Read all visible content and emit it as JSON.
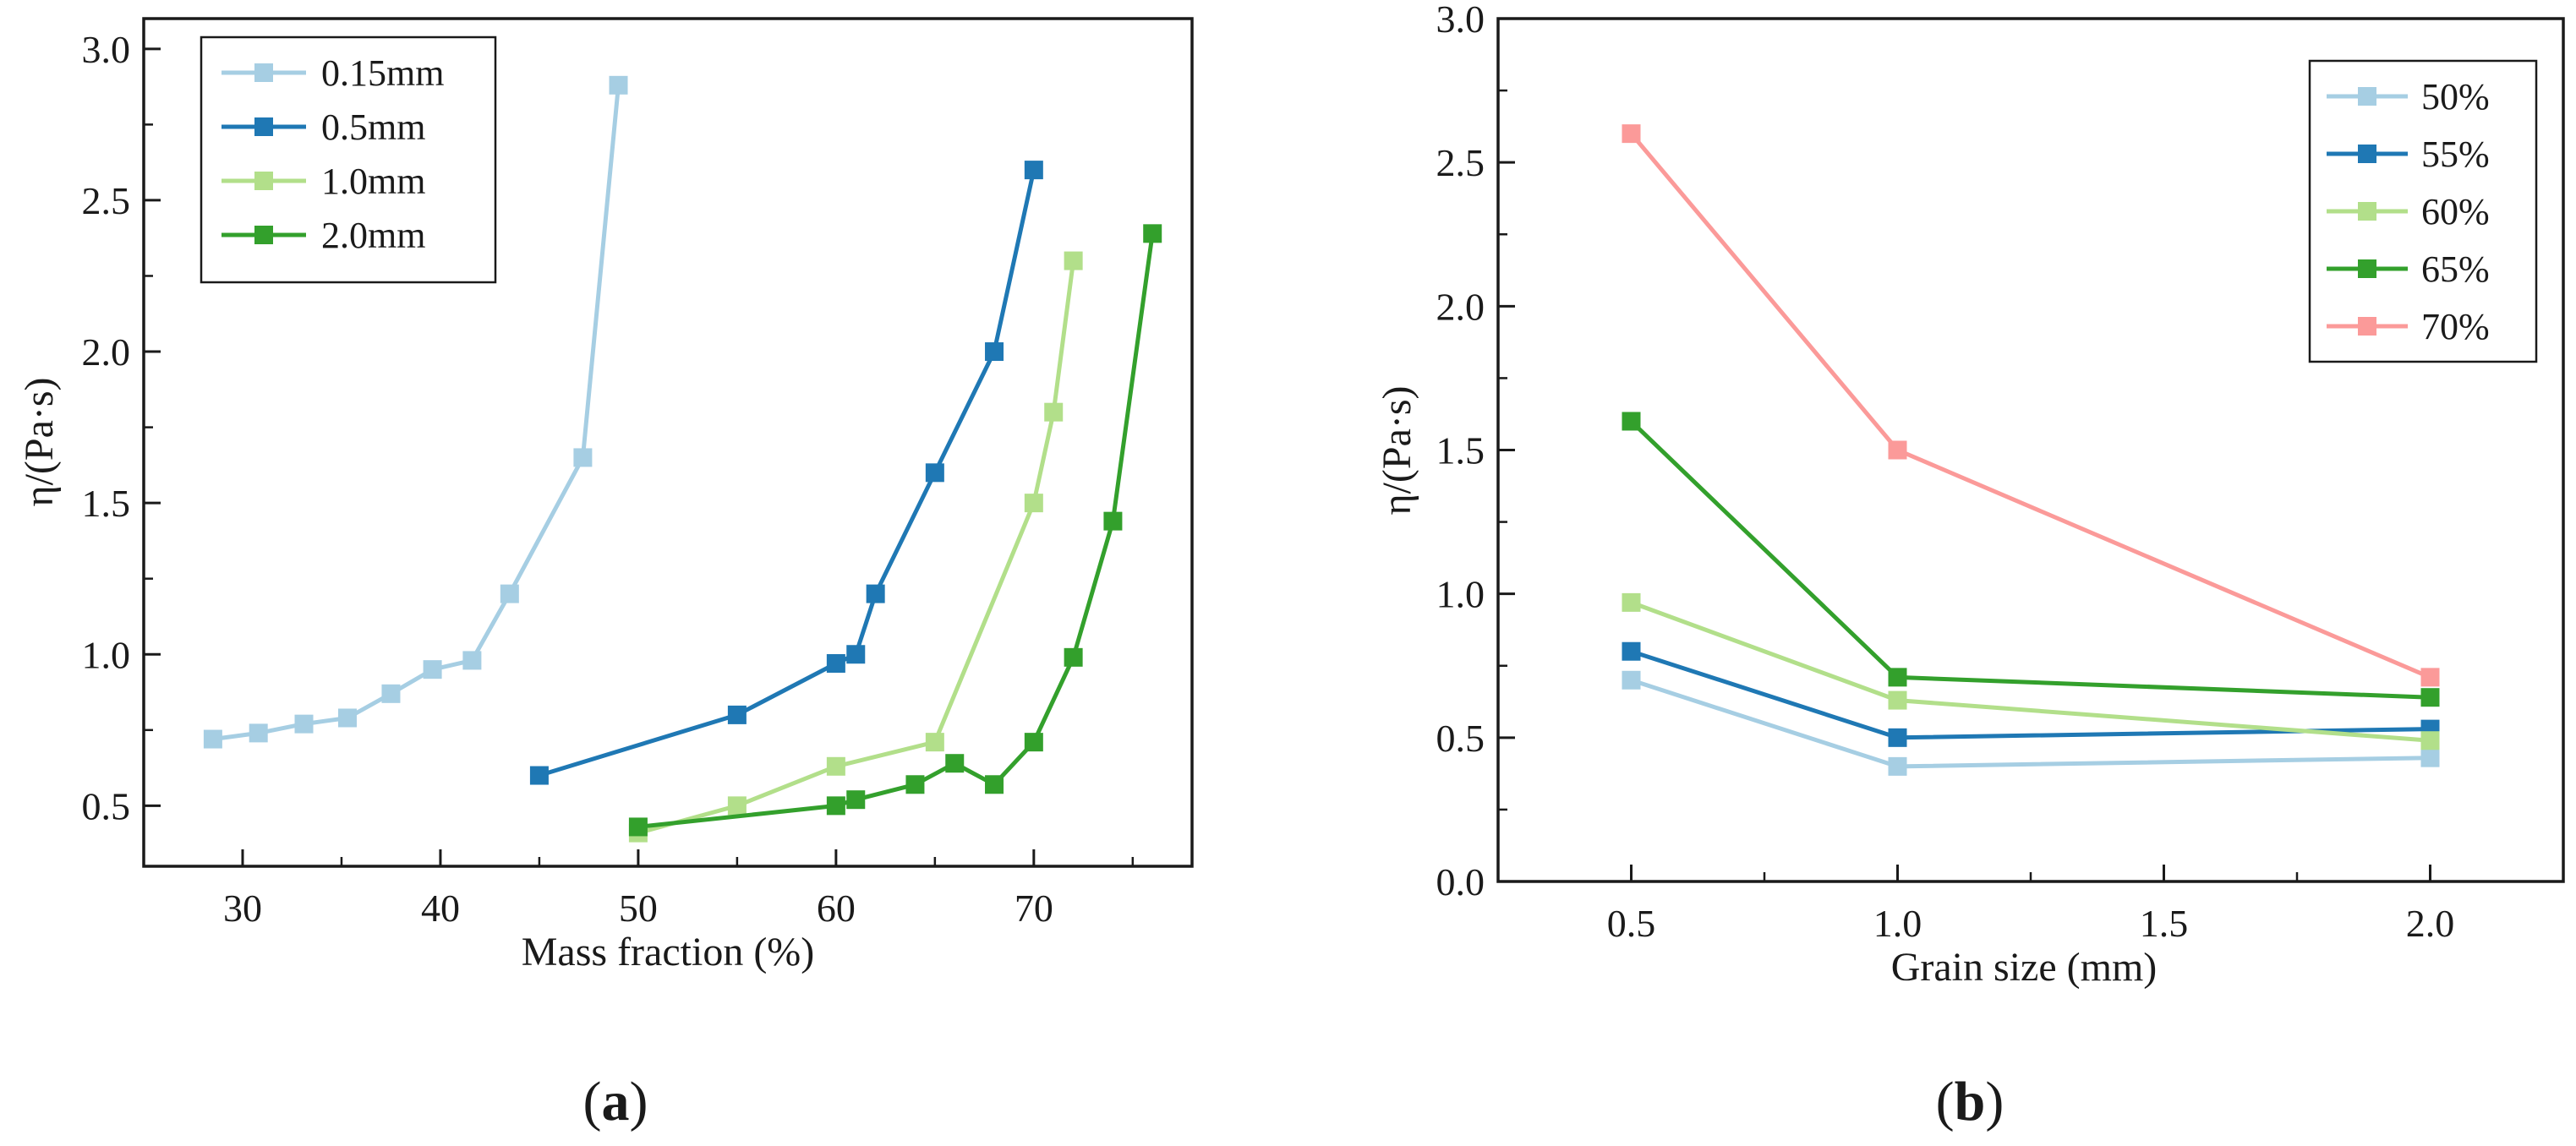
{
  "chart_data": [
    {
      "type": "line",
      "panel_label": "a",
      "title": "",
      "xlabel": "Mass fraction (%)",
      "ylabel": "η/(Pa·s)",
      "xlim": [
        25,
        78
      ],
      "ylim": [
        0.3,
        3.1
      ],
      "xticks": [
        30,
        40,
        50,
        60,
        70
      ],
      "yticks": [
        0.5,
        1.0,
        1.5,
        2.0,
        2.5,
        3.0
      ],
      "xtick_labels": [
        "30",
        "40",
        "50",
        "60",
        "70"
      ],
      "ytick_labels": [
        "0.5",
        "1.0",
        "1.5",
        "2.0",
        "2.5",
        "3.0"
      ],
      "grid": false,
      "legend_position": "top-left",
      "series": [
        {
          "name": "0.15mm",
          "color": "#a6cee3",
          "x": [
            28.5,
            30.8,
            33.1,
            35.3,
            37.5,
            39.6,
            41.6,
            43.5,
            47.2,
            49.0
          ],
          "y": [
            0.72,
            0.74,
            0.77,
            0.79,
            0.87,
            0.95,
            0.98,
            1.2,
            1.65,
            2.88
          ]
        },
        {
          "name": "0.5mm",
          "color": "#1f78b4",
          "x": [
            45,
            55,
            60,
            61,
            62,
            65,
            68,
            70
          ],
          "y": [
            0.6,
            0.8,
            0.97,
            1.0,
            1.2,
            1.6,
            2.0,
            2.6
          ]
        },
        {
          "name": "1.0mm",
          "color": "#b2df8a",
          "x": [
            50,
            55,
            60,
            65,
            70,
            71,
            72
          ],
          "y": [
            0.41,
            0.5,
            0.63,
            0.71,
            1.5,
            1.8,
            2.3
          ]
        },
        {
          "name": "2.0mm",
          "color": "#33a02c",
          "x": [
            50,
            60,
            61,
            64,
            66,
            68,
            70,
            72,
            74,
            76
          ],
          "y": [
            0.43,
            0.5,
            0.52,
            0.57,
            0.64,
            0.57,
            0.71,
            0.99,
            1.44,
            2.39
          ]
        }
      ]
    },
    {
      "type": "line",
      "panel_label": "b",
      "title": "",
      "xlabel": "Grain size (mm)",
      "ylabel": "η/(Pa·s)",
      "xlim": [
        0.25,
        2.25
      ],
      "ylim": [
        0.0,
        3.0
      ],
      "xticks": [
        0.5,
        1.0,
        1.5,
        2.0
      ],
      "yticks": [
        0.0,
        0.5,
        1.0,
        1.5,
        2.0,
        2.5,
        3.0
      ],
      "xtick_labels": [
        "0.5",
        "1.0",
        "1.5",
        "2.0"
      ],
      "ytick_labels": [
        "0.0",
        "0.5",
        "1.0",
        "1.5",
        "2.0",
        "2.5",
        "3.0"
      ],
      "grid": false,
      "legend_position": "top-right",
      "series": [
        {
          "name": "50%",
          "color": "#a6cee3",
          "x": [
            0.5,
            1.0,
            2.0
          ],
          "y": [
            0.7,
            0.4,
            0.43
          ]
        },
        {
          "name": "55%",
          "color": "#1f78b4",
          "x": [
            0.5,
            1.0,
            2.0
          ],
          "y": [
            0.8,
            0.5,
            0.53
          ]
        },
        {
          "name": "60%",
          "color": "#b2df8a",
          "x": [
            0.5,
            1.0,
            2.0
          ],
          "y": [
            0.97,
            0.63,
            0.49
          ]
        },
        {
          "name": "65%",
          "color": "#33a02c",
          "x": [
            0.5,
            1.0,
            2.0
          ],
          "y": [
            1.6,
            0.71,
            0.64
          ]
        },
        {
          "name": "70%",
          "color": "#fb9a99",
          "x": [
            0.5,
            1.0,
            2.0
          ],
          "y": [
            2.6,
            1.5,
            0.71
          ]
        }
      ]
    }
  ]
}
